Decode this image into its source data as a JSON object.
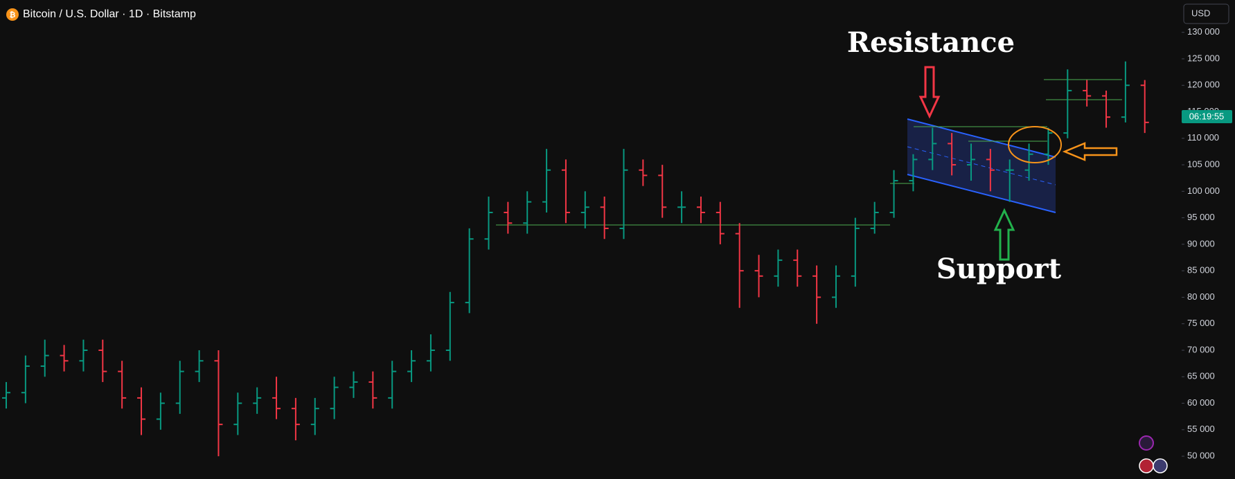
{
  "chart_data": {
    "type": "ohlc",
    "title": "Bitcoin / U.S. Dollar · 1D · Bitstamp",
    "currency": "USD",
    "countdown": "06:19:55",
    "annotations": [
      "Resistance",
      "Support"
    ],
    "up_color": "#089981",
    "down_color": "#f23645",
    "ylim": [
      45700,
      136100
    ],
    "yticks": [
      {
        "value": 50000,
        "label": "50 000"
      },
      {
        "value": 55000,
        "label": "55 000"
      },
      {
        "value": 60000,
        "label": "60 000"
      },
      {
        "value": 65000,
        "label": "65 000"
      },
      {
        "value": 70000,
        "label": "70 000"
      },
      {
        "value": 75000,
        "label": "75 000"
      },
      {
        "value": 80000,
        "label": "80 000"
      },
      {
        "value": 85000,
        "label": "85 000"
      },
      {
        "value": 90000,
        "label": "90 000"
      },
      {
        "value": 95000,
        "label": "95 000"
      },
      {
        "value": 100000,
        "label": "100 000"
      },
      {
        "value": 105000,
        "label": "105 000"
      },
      {
        "value": 110000,
        "label": "110 000"
      },
      {
        "value": 115000,
        "label": "115 000"
      },
      {
        "value": 120000,
        "label": "120 000"
      },
      {
        "value": 125000,
        "label": "125 000"
      },
      {
        "value": 130000,
        "label": "130 000"
      }
    ],
    "open": [
      61000,
      62000,
      67000,
      69000,
      68000,
      70000,
      66000,
      61000,
      57000,
      60000,
      66000,
      68000,
      56000,
      60000,
      61000,
      59000,
      56000,
      59000,
      63000,
      64000,
      61000,
      66000,
      68000,
      70000,
      79000,
      91000,
      96000,
      94000,
      98000,
      104000,
      96000,
      97000,
      93000,
      104000,
      103000,
      97000,
      97000,
      96000,
      92000,
      85000,
      84000,
      87000,
      84000,
      80000,
      84000,
      93000,
      96000,
      102000,
      106000,
      109000,
      105000,
      106000,
      104000,
      104000,
      107000,
      111000,
      119000,
      118000,
      114000,
      120000
    ],
    "high": [
      64000,
      69000,
      72000,
      71000,
      72000,
      72000,
      68000,
      63000,
      62000,
      68000,
      70000,
      70000,
      62000,
      63000,
      65000,
      61000,
      61000,
      65000,
      66000,
      66000,
      68000,
      70000,
      73000,
      81000,
      93000,
      99000,
      98000,
      100000,
      108000,
      106000,
      100000,
      99000,
      108000,
      106000,
      105000,
      100000,
      99000,
      98000,
      94000,
      88000,
      89000,
      89000,
      86000,
      86000,
      95000,
      98000,
      104000,
      107000,
      112000,
      111000,
      109000,
      108000,
      106000,
      109000,
      112000,
      123000,
      121000,
      119000,
      124500,
      121000
    ],
    "low": [
      59000,
      60000,
      65000,
      66000,
      66000,
      64000,
      59000,
      54000,
      55000,
      58000,
      64000,
      50000,
      54000,
      58000,
      57000,
      53000,
      54000,
      57000,
      61000,
      59000,
      59000,
      64000,
      66000,
      68000,
      77000,
      89000,
      92000,
      92000,
      96000,
      94000,
      93000,
      91000,
      91000,
      101000,
      95000,
      94000,
      94000,
      90000,
      78000,
      80000,
      82000,
      82000,
      75000,
      78000,
      82000,
      92000,
      95000,
      100000,
      104000,
      103000,
      102000,
      100000,
      98000,
      102000,
      105000,
      110000,
      116000,
      112000,
      113000,
      111000
    ],
    "close": [
      62000,
      67000,
      69000,
      68000,
      70000,
      66000,
      61000,
      57000,
      60000,
      66000,
      68000,
      56000,
      60000,
      61000,
      59000,
      56000,
      59000,
      63000,
      64000,
      61000,
      66000,
      68000,
      70000,
      79000,
      91000,
      96000,
      94000,
      98000,
      104000,
      96000,
      97000,
      93000,
      104000,
      103000,
      97000,
      97000,
      96000,
      92000,
      85000,
      84000,
      87000,
      84000,
      80000,
      84000,
      93000,
      96000,
      102000,
      106000,
      109000,
      105000,
      106000,
      104000,
      104000,
      107000,
      111000,
      119000,
      118000,
      114000,
      120000,
      113000
    ]
  }
}
